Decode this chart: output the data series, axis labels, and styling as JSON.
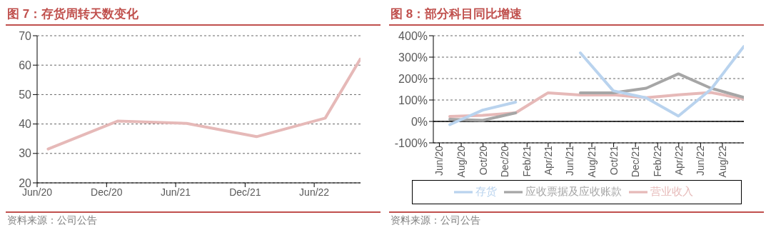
{
  "chart_data": [
    {
      "type": "line",
      "title": "图 7：存货周转天数变化",
      "x": [
        "2020-06-30",
        "2020-12-31",
        "2021-06-30",
        "2021-12-31",
        "2022-06-30",
        "2022-09-30"
      ],
      "series": [
        {
          "color": "#e6b9b8",
          "values": [
            31.5,
            41,
            40.2,
            35.7,
            42,
            62
          ]
        }
      ],
      "xlim": [
        "2020-06",
        "2022-10"
      ],
      "xticks": [
        {
          "value": "2020-06",
          "label": "Jun/20"
        },
        {
          "value": "2020-12",
          "label": "Dec/20"
        },
        {
          "value": "2021-06",
          "label": "Jun/21"
        },
        {
          "value": "2021-12",
          "label": "Dec/21"
        },
        {
          "value": "2022-06",
          "label": "Jun/22"
        }
      ],
      "ylim": [
        20,
        70
      ],
      "yticks": [
        20,
        30,
        40,
        50,
        60,
        70
      ],
      "grid": "y",
      "legend": false,
      "annotations": [
        "资料来源：公司公告"
      ]
    },
    {
      "type": "line",
      "title": "图 8：部分科目同比增速",
      "x": [
        "2020-06-30",
        "2020-09-30",
        "2020-12-31",
        "2021-03-31",
        "2021-06-30",
        "2021-09-30",
        "2021-12-31",
        "2022-03-31",
        "2022-06-30",
        "2022-09-30"
      ],
      "series": [
        {
          "name": "营业收入",
          "color": "#e6b9b8",
          "values": [
            23,
            28,
            40,
            133,
            123,
            124,
            111,
            124,
            135,
            105
          ]
        },
        {
          "name": "应收票据及应收账款",
          "color": "#a6a6a6",
          "values": [
            10,
            5,
            40,
            null,
            133,
            133,
            155,
            222,
            155,
            112
          ]
        },
        {
          "name": "存货",
          "color": "#b9d3ee",
          "values": [
            -15,
            53,
            90,
            null,
            320,
            143,
            110,
            25,
            150,
            350
          ]
        }
      ],
      "xlim": [
        "2020-05-15",
        "2022-09-30"
      ],
      "xticks": [
        {
          "value": "2020-06",
          "label": "Jun/20"
        },
        {
          "value": "2020-08",
          "label": "Aug/20"
        },
        {
          "value": "2020-10",
          "label": "Oct/20"
        },
        {
          "value": "2020-12",
          "label": "Dec/20"
        },
        {
          "value": "2021-02",
          "label": "Feb/21"
        },
        {
          "value": "2021-04",
          "label": "Apr/21"
        },
        {
          "value": "2021-06",
          "label": "Jun/21"
        },
        {
          "value": "2021-08",
          "label": "Aug/21"
        },
        {
          "value": "2021-10",
          "label": "Oct/21"
        },
        {
          "value": "2021-12",
          "label": "Dec/21"
        },
        {
          "value": "2022-02",
          "label": "Feb/22"
        },
        {
          "value": "2022-04",
          "label": "Apr/22"
        },
        {
          "value": "2022-06",
          "label": "Jun/22"
        },
        {
          "value": "2022-08",
          "label": "Aug/22"
        }
      ],
      "ylim": [
        -100,
        400
      ],
      "yticks": [
        {
          "value": -100,
          "label": "-100%"
        },
        {
          "value": 0,
          "label": "0%"
        },
        {
          "value": 100,
          "label": "100%"
        },
        {
          "value": 200,
          "label": "200%"
        },
        {
          "value": 300,
          "label": "300%"
        },
        {
          "value": 400,
          "label": "400%"
        }
      ],
      "grid": "y",
      "legend": "bottom",
      "annotations": [
        "资料来源：公司公告"
      ]
    }
  ]
}
